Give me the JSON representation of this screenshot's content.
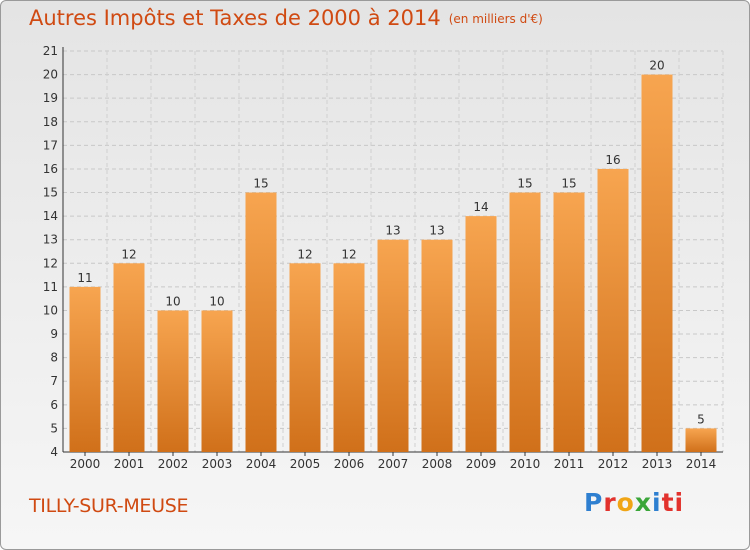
{
  "header": {
    "title": "Autres Impôts et Taxes de 2000 à 2014",
    "unit": "(en milliers d'€)"
  },
  "footer": {
    "commune": "TILLY-SUR-MEUSE",
    "logo_letters": [
      "P",
      "r",
      "o",
      "x",
      "i",
      "ti"
    ]
  },
  "colors": {
    "bar_light": "#f7a550",
    "bar_dark": "#d0701a",
    "accent": "#d04a12"
  },
  "chart_data": {
    "type": "bar",
    "title": "Autres Impôts et Taxes de 2000 à 2014",
    "subtitle": "(en milliers d'€)",
    "xlabel": "",
    "ylabel": "",
    "categories": [
      "2000",
      "2001",
      "2002",
      "2003",
      "2004",
      "2005",
      "2006",
      "2007",
      "2008",
      "2009",
      "2010",
      "2011",
      "2012",
      "2013",
      "2014"
    ],
    "values": [
      11,
      12,
      10,
      10,
      15,
      12,
      12,
      13,
      13,
      14,
      15,
      15,
      16,
      20,
      5
    ],
    "ylim": [
      4,
      21
    ],
    "yticks": [
      4,
      5,
      6,
      7,
      8,
      9,
      10,
      11,
      12,
      13,
      14,
      15,
      16,
      17,
      18,
      19,
      20,
      21
    ],
    "grid": true,
    "data_labels": true
  }
}
